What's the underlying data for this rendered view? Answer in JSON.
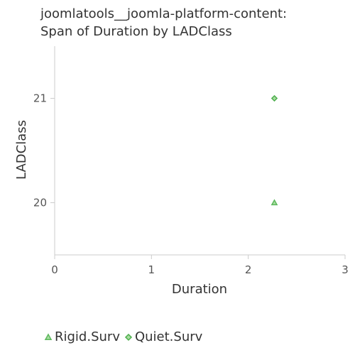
{
  "chart_data": {
    "type": "scatter",
    "title_lines": [
      "joomlatools__joomla-platform-content:",
      "Span of Duration by LADClass"
    ],
    "xlabel": "Duration",
    "ylabel": "LADClass",
    "xlim": [
      0,
      3
    ],
    "ylim": [
      19.5,
      21.5
    ],
    "x_ticks": [
      0,
      1,
      2,
      3
    ],
    "y_ticks": [
      20,
      21
    ],
    "grid": false,
    "legend_position": "bottom",
    "series": [
      {
        "name": "Rigid.Surv",
        "marker": "triangle",
        "color": "#5cb85c",
        "fill": "#a8dca0",
        "points": [
          {
            "x": 2.27,
            "y": 20
          }
        ]
      },
      {
        "name": "Quiet.Surv",
        "marker": "diamond",
        "color": "#4cae4c",
        "fill": "#a8dca0",
        "points": [
          {
            "x": 2.27,
            "y": 21
          }
        ]
      }
    ]
  }
}
